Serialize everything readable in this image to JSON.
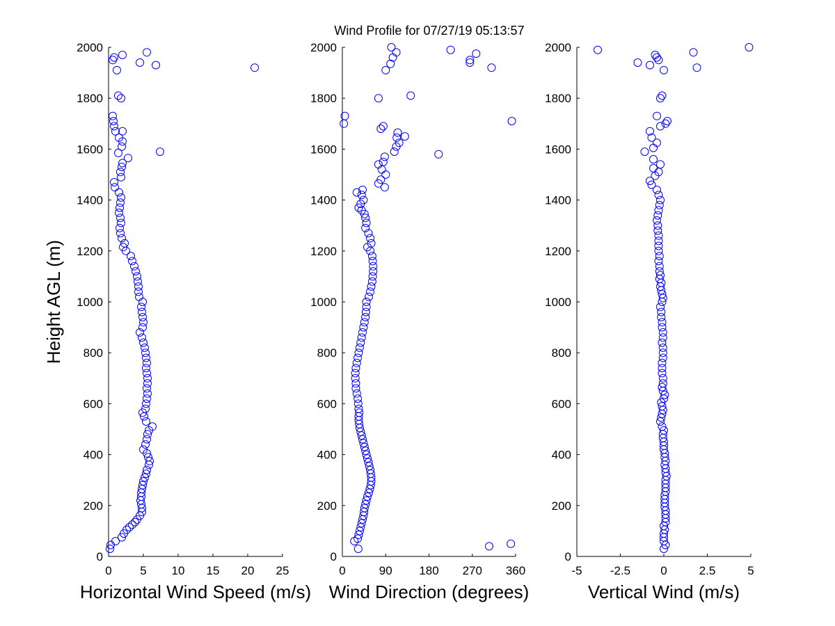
{
  "title": "Wind Profile for  07/27/19 05:13:57",
  "colors": {
    "marker": "#0000ff",
    "axes": "#000000",
    "background": "#ffffff"
  },
  "chart_data": [
    {
      "type": "scatter",
      "xlabel": "Horizontal Wind Speed (m/s)",
      "ylabel": "Height AGL (m)",
      "xlim": [
        0,
        25
      ],
      "ylim": [
        0,
        2000
      ],
      "xticks": [
        "0",
        "5",
        "10",
        "15",
        "20",
        "25"
      ],
      "yticks": [
        "0",
        "200",
        "400",
        "600",
        "800",
        "1000",
        "1200",
        "1400",
        "1600",
        "1800",
        "2000"
      ],
      "grid": false,
      "points": [
        [
          0.2,
          30
        ],
        [
          0.3,
          45
        ],
        [
          1.0,
          60
        ],
        [
          1.9,
          75
        ],
        [
          2.2,
          90
        ],
        [
          2.6,
          105
        ],
        [
          3.0,
          115
        ],
        [
          3.4,
          125
        ],
        [
          3.8,
          135
        ],
        [
          4.1,
          145
        ],
        [
          4.5,
          160
        ],
        [
          4.8,
          175
        ],
        [
          4.8,
          190
        ],
        [
          4.7,
          205
        ],
        [
          4.6,
          220
        ],
        [
          4.7,
          235
        ],
        [
          4.7,
          250
        ],
        [
          4.8,
          265
        ],
        [
          4.9,
          280
        ],
        [
          5.0,
          295
        ],
        [
          5.2,
          310
        ],
        [
          5.4,
          325
        ],
        [
          5.5,
          340
        ],
        [
          5.8,
          360
        ],
        [
          5.9,
          375
        ],
        [
          5.7,
          390
        ],
        [
          5.5,
          405
        ],
        [
          5.0,
          420
        ],
        [
          5.3,
          440
        ],
        [
          5.5,
          460
        ],
        [
          5.6,
          480
        ],
        [
          5.8,
          495
        ],
        [
          6.3,
          510
        ],
        [
          5.4,
          530
        ],
        [
          5.1,
          550
        ],
        [
          4.9,
          565
        ],
        [
          5.3,
          580
        ],
        [
          5.4,
          600
        ],
        [
          5.5,
          620
        ],
        [
          5.6,
          640
        ],
        [
          5.5,
          660
        ],
        [
          5.6,
          680
        ],
        [
          5.6,
          700
        ],
        [
          5.5,
          720
        ],
        [
          5.4,
          740
        ],
        [
          5.5,
          760
        ],
        [
          5.4,
          780
        ],
        [
          5.3,
          800
        ],
        [
          5.2,
          820
        ],
        [
          5.0,
          840
        ],
        [
          4.8,
          860
        ],
        [
          4.5,
          880
        ],
        [
          4.9,
          900
        ],
        [
          5.0,
          920
        ],
        [
          4.9,
          940
        ],
        [
          4.8,
          960
        ],
        [
          4.7,
          980
        ],
        [
          4.9,
          1000
        ],
        [
          4.4,
          1020
        ],
        [
          4.3,
          1040
        ],
        [
          4.3,
          1060
        ],
        [
          4.2,
          1080
        ],
        [
          4.1,
          1100
        ],
        [
          3.9,
          1120
        ],
        [
          3.7,
          1140
        ],
        [
          3.4,
          1160
        ],
        [
          3.2,
          1180
        ],
        [
          2.5,
          1200
        ],
        [
          2.1,
          1215
        ],
        [
          2.3,
          1230
        ],
        [
          1.9,
          1250
        ],
        [
          1.7,
          1270
        ],
        [
          1.6,
          1290
        ],
        [
          1.8,
          1310
        ],
        [
          1.7,
          1330
        ],
        [
          1.5,
          1350
        ],
        [
          1.6,
          1370
        ],
        [
          1.7,
          1390
        ],
        [
          1.8,
          1410
        ],
        [
          1.5,
          1430
        ],
        [
          0.9,
          1450
        ],
        [
          0.8,
          1470
        ],
        [
          1.8,
          1490
        ],
        [
          1.7,
          1510
        ],
        [
          1.9,
          1530
        ],
        [
          2.0,
          1545
        ],
        [
          2.8,
          1565
        ],
        [
          1.4,
          1585
        ],
        [
          7.4,
          1590
        ],
        [
          1.9,
          1610
        ],
        [
          2.0,
          1630
        ],
        [
          1.5,
          1645
        ],
        [
          2.0,
          1670
        ],
        [
          1.0,
          1670
        ],
        [
          0.8,
          1690
        ],
        [
          0.7,
          1710
        ],
        [
          0.6,
          1730
        ],
        [
          1.8,
          1800
        ],
        [
          1.4,
          1810
        ],
        [
          1.2,
          1910
        ],
        [
          21.0,
          1920
        ],
        [
          6.8,
          1930
        ],
        [
          4.5,
          1940
        ],
        [
          0.6,
          1950
        ],
        [
          0.8,
          1960
        ],
        [
          2.0,
          1970
        ],
        [
          5.5,
          1980
        ]
      ]
    },
    {
      "type": "scatter",
      "xlabel": "Wind Direction (degrees)",
      "ylabel": "",
      "xlim": [
        0,
        360
      ],
      "ylim": [
        0,
        2000
      ],
      "xticks": [
        "0",
        "90",
        "180",
        "270",
        "360"
      ],
      "yticks": [
        "0",
        "200",
        "400",
        "600",
        "800",
        "1000",
        "1200",
        "1400",
        "1600",
        "1800",
        "2000"
      ],
      "grid": false,
      "points": [
        [
          33,
          30
        ],
        [
          350,
          50
        ],
        [
          305,
          40
        ],
        [
          25,
          60
        ],
        [
          32,
          70
        ],
        [
          34,
          85
        ],
        [
          36,
          100
        ],
        [
          38,
          115
        ],
        [
          40,
          130
        ],
        [
          42,
          145
        ],
        [
          44,
          160
        ],
        [
          45,
          175
        ],
        [
          46,
          190
        ],
        [
          48,
          205
        ],
        [
          50,
          220
        ],
        [
          52,
          235
        ],
        [
          55,
          250
        ],
        [
          57,
          265
        ],
        [
          59,
          280
        ],
        [
          60,
          295
        ],
        [
          60,
          310
        ],
        [
          59,
          325
        ],
        [
          58,
          340
        ],
        [
          56,
          355
        ],
        [
          54,
          370
        ],
        [
          52,
          385
        ],
        [
          50,
          400
        ],
        [
          48,
          415
        ],
        [
          46,
          430
        ],
        [
          44,
          445
        ],
        [
          42,
          460
        ],
        [
          40,
          475
        ],
        [
          38,
          490
        ],
        [
          36,
          505
        ],
        [
          35,
          520
        ],
        [
          34,
          535
        ],
        [
          34,
          550
        ],
        [
          35,
          565
        ],
        [
          34,
          580
        ],
        [
          33,
          600
        ],
        [
          32,
          620
        ],
        [
          30,
          640
        ],
        [
          28,
          660
        ],
        [
          28,
          680
        ],
        [
          27,
          700
        ],
        [
          27,
          720
        ],
        [
          28,
          740
        ],
        [
          30,
          760
        ],
        [
          32,
          780
        ],
        [
          34,
          800
        ],
        [
          36,
          820
        ],
        [
          38,
          840
        ],
        [
          40,
          860
        ],
        [
          42,
          880
        ],
        [
          44,
          900
        ],
        [
          46,
          920
        ],
        [
          48,
          940
        ],
        [
          49,
          960
        ],
        [
          50,
          980
        ],
        [
          50,
          1000
        ],
        [
          55,
          1020
        ],
        [
          58,
          1040
        ],
        [
          60,
          1060
        ],
        [
          62,
          1080
        ],
        [
          63,
          1100
        ],
        [
          64,
          1120
        ],
        [
          64,
          1140
        ],
        [
          63,
          1160
        ],
        [
          62,
          1180
        ],
        [
          58,
          1200
        ],
        [
          52,
          1215
        ],
        [
          60,
          1230
        ],
        [
          58,
          1250
        ],
        [
          54,
          1270
        ],
        [
          48,
          1290
        ],
        [
          50,
          1310
        ],
        [
          48,
          1330
        ],
        [
          46,
          1345
        ],
        [
          40,
          1360
        ],
        [
          34,
          1370
        ],
        [
          38,
          1385
        ],
        [
          44,
          1400
        ],
        [
          40,
          1420
        ],
        [
          30,
          1430
        ],
        [
          42,
          1440
        ],
        [
          88,
          1450
        ],
        [
          75,
          1465
        ],
        [
          80,
          1480
        ],
        [
          90,
          1500
        ],
        [
          82,
          1520
        ],
        [
          75,
          1540
        ],
        [
          85,
          1550
        ],
        [
          88,
          1570
        ],
        [
          200,
          1580
        ],
        [
          108,
          1590
        ],
        [
          112,
          1610
        ],
        [
          118,
          1625
        ],
        [
          113,
          1645
        ],
        [
          130,
          1650
        ],
        [
          115,
          1665
        ],
        [
          80,
          1680
        ],
        [
          85,
          1690
        ],
        [
          3,
          1700
        ],
        [
          352,
          1710
        ],
        [
          5,
          1730
        ],
        [
          75,
          1800
        ],
        [
          142,
          1810
        ],
        [
          90,
          1910
        ],
        [
          310,
          1920
        ],
        [
          100,
          1935
        ],
        [
          265,
          1940
        ],
        [
          265,
          1950
        ],
        [
          105,
          1960
        ],
        [
          278,
          1975
        ],
        [
          112,
          1980
        ],
        [
          225,
          1990
        ],
        [
          102,
          2000
        ]
      ]
    },
    {
      "type": "scatter",
      "xlabel": "Vertical Wind (m/s)",
      "ylabel": "",
      "xlim": [
        -5,
        5
      ],
      "ylim": [
        0,
        2000
      ],
      "xticks": [
        "-5",
        "-2.5",
        "0",
        "2.5",
        "5"
      ],
      "yticks": [
        "0",
        "200",
        "400",
        "600",
        "800",
        "1000",
        "1200",
        "1400",
        "1600",
        "1800",
        "2000"
      ],
      "grid": false,
      "points": [
        [
          0.0,
          30
        ],
        [
          0.1,
          45
        ],
        [
          0.0,
          60
        ],
        [
          0.0,
          75
        ],
        [
          0.0,
          90
        ],
        [
          0.05,
          105
        ],
        [
          0.0,
          120
        ],
        [
          0.1,
          135
        ],
        [
          0.1,
          150
        ],
        [
          0.1,
          165
        ],
        [
          0.1,
          180
        ],
        [
          0.05,
          195
        ],
        [
          0.05,
          210
        ],
        [
          0.05,
          225
        ],
        [
          0.05,
          240
        ],
        [
          0.1,
          255
        ],
        [
          0.1,
          270
        ],
        [
          0.1,
          285
        ],
        [
          0.1,
          300
        ],
        [
          0.15,
          315
        ],
        [
          0.1,
          330
        ],
        [
          0.1,
          345
        ],
        [
          0.05,
          360
        ],
        [
          0.1,
          375
        ],
        [
          0.05,
          390
        ],
        [
          0.05,
          405
        ],
        [
          0.0,
          420
        ],
        [
          0.0,
          435
        ],
        [
          0.0,
          450
        ],
        [
          -0.05,
          465
        ],
        [
          -0.05,
          480
        ],
        [
          0.0,
          495
        ],
        [
          -0.1,
          510
        ],
        [
          -0.2,
          530
        ],
        [
          -0.15,
          545
        ],
        [
          -0.1,
          560
        ],
        [
          -0.05,
          575
        ],
        [
          -0.1,
          590
        ],
        [
          -0.15,
          605
        ],
        [
          0.0,
          620
        ],
        [
          0.05,
          635
        ],
        [
          -0.05,
          650
        ],
        [
          -0.1,
          665
        ],
        [
          -0.05,
          680
        ],
        [
          -0.05,
          700
        ],
        [
          -0.1,
          720
        ],
        [
          -0.1,
          740
        ],
        [
          -0.1,
          760
        ],
        [
          -0.05,
          780
        ],
        [
          -0.05,
          800
        ],
        [
          -0.05,
          820
        ],
        [
          -0.1,
          840
        ],
        [
          -0.05,
          860
        ],
        [
          -0.05,
          880
        ],
        [
          -0.1,
          900
        ],
        [
          -0.1,
          920
        ],
        [
          -0.15,
          940
        ],
        [
          -0.15,
          960
        ],
        [
          -0.2,
          980
        ],
        [
          -0.1,
          1000
        ],
        [
          -0.05,
          1015
        ],
        [
          -0.1,
          1030
        ],
        [
          -0.15,
          1045
        ],
        [
          -0.2,
          1060
        ],
        [
          -0.15,
          1075
        ],
        [
          -0.25,
          1090
        ],
        [
          -0.2,
          1105
        ],
        [
          -0.25,
          1120
        ],
        [
          -0.25,
          1140
        ],
        [
          -0.3,
          1160
        ],
        [
          -0.25,
          1180
        ],
        [
          -0.3,
          1200
        ],
        [
          -0.3,
          1220
        ],
        [
          -0.3,
          1240
        ],
        [
          -0.3,
          1260
        ],
        [
          -0.35,
          1280
        ],
        [
          -0.35,
          1300
        ],
        [
          -0.4,
          1320
        ],
        [
          -0.35,
          1340
        ],
        [
          -0.3,
          1360
        ],
        [
          -0.25,
          1380
        ],
        [
          -0.2,
          1400
        ],
        [
          -0.3,
          1420
        ],
        [
          -0.4,
          1440
        ],
        [
          -0.7,
          1460
        ],
        [
          -0.8,
          1475
        ],
        [
          -0.5,
          1495
        ],
        [
          -0.3,
          1510
        ],
        [
          -0.6,
          1525
        ],
        [
          -0.2,
          1540
        ],
        [
          -0.6,
          1560
        ],
        [
          -1.1,
          1590
        ],
        [
          -0.6,
          1605
        ],
        [
          -0.4,
          1625
        ],
        [
          -0.7,
          1645
        ],
        [
          -0.8,
          1670
        ],
        [
          -0.2,
          1690
        ],
        [
          0.1,
          1700
        ],
        [
          0.2,
          1710
        ],
        [
          -0.4,
          1730
        ],
        [
          -0.2,
          1800
        ],
        [
          -0.1,
          1810
        ],
        [
          0.0,
          1910
        ],
        [
          1.9,
          1920
        ],
        [
          -0.8,
          1930
        ],
        [
          -1.5,
          1940
        ],
        [
          -0.3,
          1950
        ],
        [
          -0.4,
          1960
        ],
        [
          -0.5,
          1970
        ],
        [
          1.7,
          1980
        ],
        [
          -3.8,
          1990
        ],
        [
          4.9,
          2000
        ]
      ]
    }
  ]
}
